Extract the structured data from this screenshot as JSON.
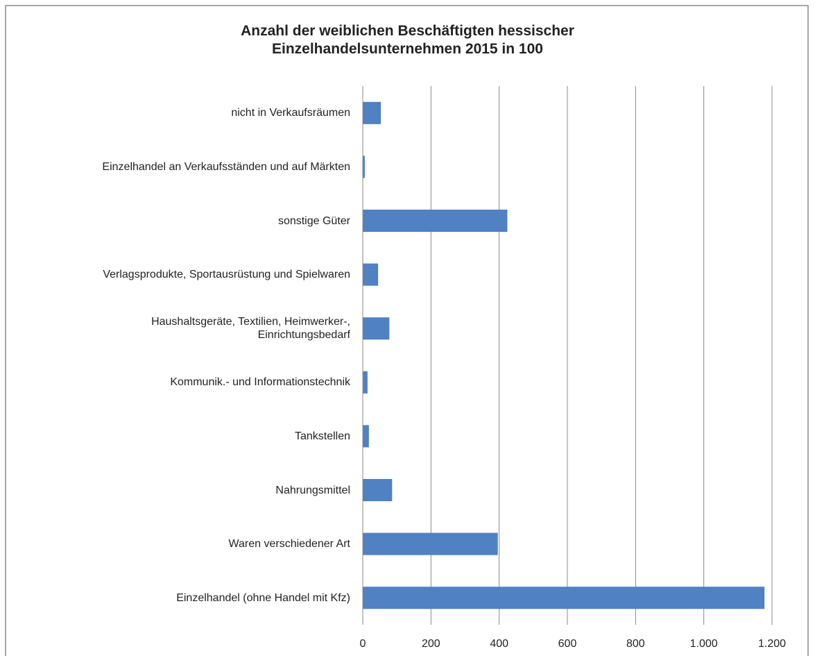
{
  "chart_data": {
    "type": "bar",
    "orientation": "horizontal",
    "title": "Anzahl der weiblichen Beschäftigten hessischer\nEinzelhandelsunternehmen 2015 in 100",
    "categories": [
      "nicht in Verkaufsräumen",
      "Einzelhandel an Verkaufsständen und auf Märkten",
      "sonstige Güter",
      "Verlagsprodukte, Sportausrüstung und Spielwaren",
      "Haushaltsgeräte, Textilien, Heimwerker-,\nEinrichtungsbedarf",
      "Kommunik.- und Informationstechnik",
      "Tankstellen",
      "Nahrungsmittel",
      "Waren verschiedener Art",
      "Einzelhandel (ohne Handel mit Kfz)"
    ],
    "values": [
      53,
      6,
      424,
      45,
      78,
      14,
      18,
      86,
      396,
      1178
    ],
    "color": "#4f81c3",
    "xlim": [
      0,
      1200
    ],
    "xticks": [
      0,
      200,
      400,
      600,
      800,
      {
        "value": 1000,
        "label": "1.000"
      },
      {
        "value": 1200,
        "label": "1.200"
      }
    ],
    "grid": true
  }
}
